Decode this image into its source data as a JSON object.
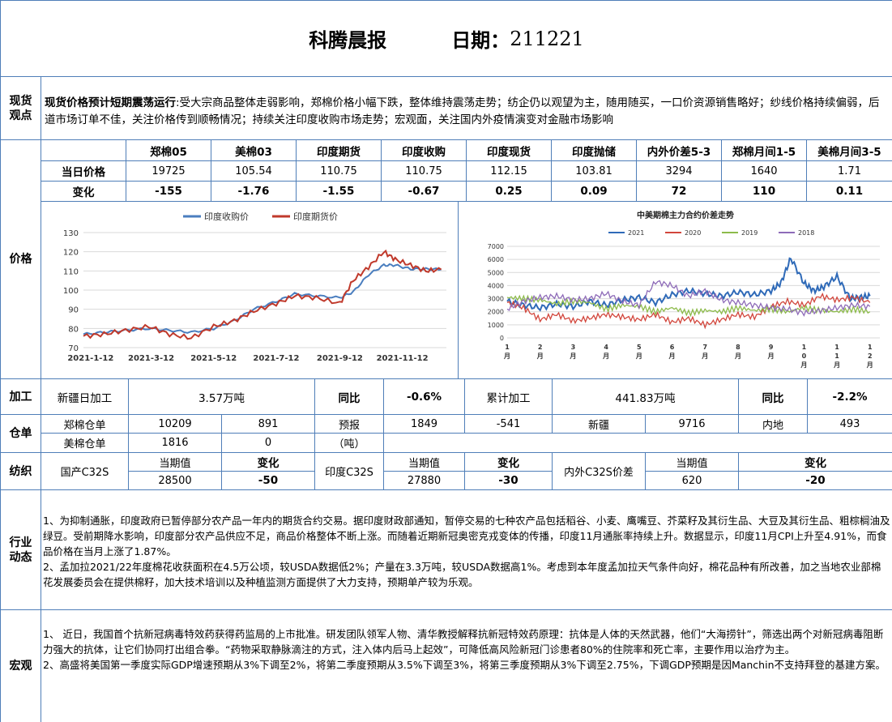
{
  "header": {
    "title": "科腾晨报",
    "date_label": "日期：",
    "date_value": "211221"
  },
  "spot_view": {
    "label": "现货观点",
    "headline": "现货价格预计短期震荡运行",
    "body": ":受大宗商品整体走弱影响，郑棉价格小幅下跌，整体维持震荡走势；纺企仍以观望为主，随用随买，一口价资源销售略好；纱线价格持续偏弱，后道市场订单不佳，关注价格传到顺畅情况；持续关注印度收购市场走势；宏观面，关注国内外疫情演变对金融市场影响"
  },
  "price": {
    "label": "价格",
    "columns": [
      "郑棉05",
      "美棉03",
      "印度期货",
      "印度收购",
      "印度现货",
      "印度抛储",
      "内外价差5-3",
      "郑棉月间1-5",
      "美棉月间3-5"
    ],
    "row_today_label": "当日价格",
    "today": [
      "19725",
      "105.54",
      "110.75",
      "110.75",
      "112.15",
      "103.81",
      "3294",
      "1640",
      "1.71"
    ],
    "row_change_label": "变化",
    "change": [
      "-155",
      "-1.76",
      "-1.55",
      "-0.67",
      "0.25",
      "0.09",
      "72",
      "110",
      "0.11"
    ]
  },
  "chart_data": [
    {
      "type": "line",
      "title": "",
      "legend": [
        "印度收购价",
        "印度期货价"
      ],
      "legend_position": "top",
      "x_ticks": [
        "2021-1-12",
        "2021-3-12",
        "2021-5-12",
        "2021-7-12",
        "2021-9-12",
        "2021-11-12"
      ],
      "y_ticks": [
        70,
        80,
        90,
        100,
        110,
        120,
        130
      ],
      "ylim": [
        70,
        130
      ],
      "grid": true,
      "series": [
        {
          "name": "印度收购价",
          "color": "#4a7ebf",
          "x": [
            "2021-01-05",
            "2021-01-25",
            "2021-02-15",
            "2021-03-10",
            "2021-03-30",
            "2021-04-20",
            "2021-05-12",
            "2021-06-01",
            "2021-06-20",
            "2021-07-12",
            "2021-07-30",
            "2021-08-20",
            "2021-09-12",
            "2021-09-25",
            "2021-10-10",
            "2021-10-25",
            "2021-11-05",
            "2021-11-20",
            "2021-12-05",
            "2021-12-20"
          ],
          "values": [
            77,
            78,
            79,
            80,
            79,
            78,
            80,
            84,
            90,
            94,
            98,
            97,
            96,
            99,
            108,
            113,
            113,
            111,
            111,
            110.75
          ]
        },
        {
          "name": "印度期货价",
          "color": "#c0392b",
          "x": [
            "2021-01-05",
            "2021-01-25",
            "2021-02-15",
            "2021-03-10",
            "2021-03-30",
            "2021-04-20",
            "2021-05-12",
            "2021-06-01",
            "2021-06-20",
            "2021-07-12",
            "2021-07-30",
            "2021-08-20",
            "2021-09-12",
            "2021-09-25",
            "2021-10-10",
            "2021-10-25",
            "2021-11-05",
            "2021-11-20",
            "2021-12-05",
            "2021-12-20"
          ],
          "values": [
            76,
            77,
            79,
            81,
            77,
            75,
            81,
            84,
            89,
            93,
            97,
            96,
            93,
            105,
            112,
            120,
            116,
            113,
            110,
            110.75
          ]
        }
      ]
    },
    {
      "type": "line",
      "title": "中美期棉主力合约价差走势",
      "legend": [
        "2021",
        "2020",
        "2019",
        "2018"
      ],
      "legend_position": "top",
      "y_ticks": [
        0,
        1000,
        2000,
        3000,
        4000,
        5000,
        6000,
        7000
      ],
      "ylim": [
        0,
        7000
      ],
      "x_ticks": [
        "1月",
        "2月",
        "3月",
        "4月",
        "5月",
        "6月",
        "7月",
        "8月",
        "9月",
        "10月",
        "11月",
        "12月"
      ],
      "grid": true,
      "series": [
        {
          "name": "2021",
          "color": "#2f6ab8",
          "x": [
            1,
            1.5,
            2,
            2.5,
            3,
            3.5,
            4,
            4.5,
            5,
            5.5,
            6,
            6.5,
            7,
            7.5,
            8,
            8.5,
            9,
            9.3,
            9.6,
            10,
            10.3,
            10.6,
            11,
            11.4,
            11.7,
            12
          ],
          "values": [
            2800,
            2500,
            2300,
            2600,
            2400,
            2800,
            2500,
            2900,
            3100,
            2700,
            3300,
            3600,
            3400,
            3200,
            3500,
            3300,
            3600,
            4200,
            6100,
            4200,
            3600,
            3900,
            4700,
            3000,
            3100,
            3200
          ]
        },
        {
          "name": "2020",
          "color": "#d2463c",
          "x": [
            1,
            1.5,
            2,
            2.5,
            3,
            3.5,
            4,
            4.5,
            5,
            5.5,
            6,
            6.5,
            7,
            7.5,
            8,
            8.5,
            9,
            9.5,
            10,
            10.5,
            11,
            11.5,
            12
          ],
          "values": [
            2700,
            2300,
            1400,
            1800,
            1300,
            1500,
            1800,
            1600,
            1400,
            1800,
            1200,
            1500,
            1000,
            1400,
            1800,
            1600,
            2400,
            2800,
            2500,
            3200,
            2900,
            3100,
            2700
          ]
        },
        {
          "name": "2019",
          "color": "#8dbb4b",
          "x": [
            1,
            1.5,
            2,
            2.5,
            3,
            3.5,
            4,
            4.5,
            5,
            5.5,
            6,
            6.5,
            7,
            7.5,
            8,
            8.5,
            9,
            9.5,
            10,
            10.5,
            11,
            11.5,
            12
          ],
          "values": [
            3100,
            3000,
            2900,
            2600,
            2800,
            2700,
            2200,
            2500,
            2400,
            2000,
            2300,
            1900,
            2100,
            2000,
            2300,
            2100,
            2200,
            2000,
            2300,
            2100,
            2000,
            2200,
            2000
          ]
        },
        {
          "name": "2018",
          "color": "#8e6bb8",
          "x": [
            1,
            1.5,
            2,
            2.5,
            3,
            3.5,
            4,
            4.5,
            5,
            5.5,
            6,
            6.5,
            7,
            7.5,
            8,
            8.5,
            9,
            9.5,
            10,
            10.5,
            11,
            11.5,
            12
          ],
          "values": [
            2200,
            2800,
            3100,
            3200,
            2900,
            3000,
            3400,
            2800,
            2500,
            4300,
            4000,
            3200,
            3600,
            2900,
            2700,
            2500,
            2300,
            2200,
            1900,
            2100,
            2300,
            2500,
            2400
          ]
        }
      ]
    }
  ],
  "processing": {
    "label": "加工",
    "xinjiang_label": "新疆日加工",
    "xinjiang_value": "3.57万吨",
    "yoy_label": "同比",
    "yoy_value": "-0.6%",
    "cumulative_label": "累计加工",
    "cumulative_value": "441.83万吨",
    "yoy2_label": "同比",
    "yoy2_value": "-2.2%"
  },
  "warehouse": {
    "label": "仓单",
    "zhengmian_label": "郑棉仓单",
    "zhengmian_value": "10209",
    "zhengmian_change": "891",
    "forecast_label": "预报",
    "forecast_value": "1849",
    "forecast_change": "-541",
    "xinjiang_label": "新疆",
    "xinjiang_value": "9716",
    "inland_label": "内地",
    "inland_value": "493",
    "meimian_label": "美棉仓单",
    "meimian_value": "1816",
    "meimian_change": "0",
    "unit": "（吨）"
  },
  "spinning": {
    "label": "纺织",
    "domestic_label": "国产C32S",
    "current_label": "当期值",
    "change_label": "变化",
    "domestic_value": "28500",
    "domestic_change": "-50",
    "india_label": "印度C32S",
    "india_value": "27880",
    "india_change": "-30",
    "spread_label": "内外C32S价差",
    "spread_value": "620",
    "spread_change": "-20"
  },
  "industry": {
    "label": "行业动态",
    "p1": "1、为抑制通胀，印度政府已暂停部分农产品一年内的期货合约交易。据印度财政部通知，暂停交易的七种农产品包括稻谷、小麦、鹰嘴豆、芥菜籽及其衍生品、大豆及其衍生品、粗棕榈油及绿豆。受前期降水影响，印度部分农产品供应不足，商品价格整体不断上涨。而随着近期新冠奥密克戎变体的传播，印度11月通胀率持续上升。数据显示，印度11月CPI上升至4.91%，而食品价格在当月上涨了1.87%。",
    "p2": "2、孟加拉2021/22年度棉花收获面积在4.5万公顷，较USDA数据低2%；产量在3.3万吨，较USDA数据高1%。考虑到本年度孟加拉天气条件向好，棉花品种有所改善，加之当地农业部棉花发展委员会在提供棉籽，加大技术培训以及种植监测方面提供了大力支持，预期单产较为乐观。"
  },
  "macro": {
    "label": "宏观",
    "p1": "1、 近日，我国首个抗新冠病毒特效药获得药监局的上市批准。研发团队领军人物、清华教授解释抗新冠特效药原理：抗体是人体的天然武器，他们“大海捞针”，筛选出两个对新冠病毒阻断力强大的抗体，让它们协同打出组合拳。“药物采取静脉滴注的方式，注入体内后马上起效”，可降低高风险新冠门诊患者80%的住院率和死亡率，主要作用以治疗为主。",
    "p2": "2、高盛将美国第一季度实际GDP增速预期从3%下调至2%，将第二季度预期从3.5%下调至3%，将第三季度预期从3%下调至2.75%，下调GDP预期是因Manchin不支持拜登的基建方案。"
  },
  "colors": {
    "border": "#4f7eb8",
    "series_blue": "#4a7ebf",
    "series_red": "#c0392b"
  }
}
